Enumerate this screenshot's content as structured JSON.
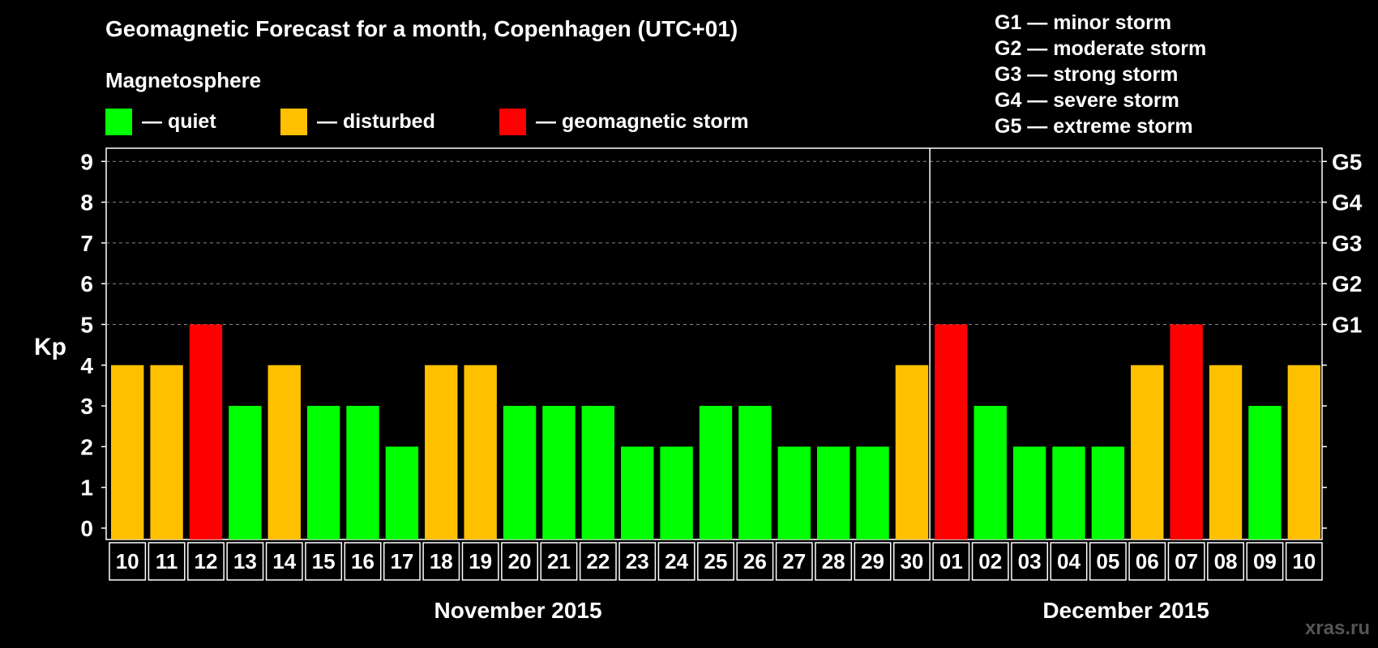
{
  "title": "Geomagnetic Forecast for a month, Copenhagen (UTC+01)",
  "magnetosphere_label": "Magnetosphere",
  "legend": [
    {
      "label": "— quiet",
      "color": "#00ff00"
    },
    {
      "label": "— disturbed",
      "color": "#ffc000"
    },
    {
      "label": "— geomagnetic storm",
      "color": "#ff0000"
    }
  ],
  "g_scale": [
    "G1 — minor storm",
    "G2 — moderate storm",
    "G3 — strong storm",
    "G4 — severe storm",
    "G5 — extreme storm"
  ],
  "watermark": "xras.ru",
  "colors": {
    "quiet": "#00ff00",
    "disturbed": "#ffc000",
    "storm": "#ff0000",
    "background": "#000000",
    "grid": "#888888"
  },
  "chart_data": {
    "type": "bar",
    "title": "Geomagnetic Forecast for a month, Copenhagen (UTC+01)",
    "ylabel": "Kp",
    "ylim": [
      0,
      9
    ],
    "yticks": [
      0,
      1,
      2,
      3,
      4,
      5,
      6,
      7,
      8,
      9
    ],
    "right_axis_labels": [
      {
        "kp": 5,
        "label": "G1"
      },
      {
        "kp": 6,
        "label": "G2"
      },
      {
        "kp": 7,
        "label": "G3"
      },
      {
        "kp": 8,
        "label": "G4"
      },
      {
        "kp": 9,
        "label": "G5"
      }
    ],
    "grid": "dashed at Kp 5-9",
    "categories": [
      "10",
      "11",
      "12",
      "13",
      "14",
      "15",
      "16",
      "17",
      "18",
      "19",
      "20",
      "21",
      "22",
      "23",
      "24",
      "25",
      "26",
      "27",
      "28",
      "29",
      "30",
      "01",
      "02",
      "03",
      "04",
      "05",
      "06",
      "07",
      "08",
      "09",
      "10"
    ],
    "values": [
      4,
      4,
      5,
      3,
      4,
      3,
      3,
      2,
      4,
      4,
      3,
      3,
      3,
      2,
      2,
      3,
      3,
      2,
      2,
      2,
      4,
      5,
      3,
      2,
      2,
      2,
      4,
      5,
      4,
      3,
      4
    ],
    "months": [
      {
        "label": "November 2015",
        "start_index": 0,
        "end_index": 20
      },
      {
        "label": "December 2015",
        "start_index": 21,
        "end_index": 30
      }
    ]
  }
}
